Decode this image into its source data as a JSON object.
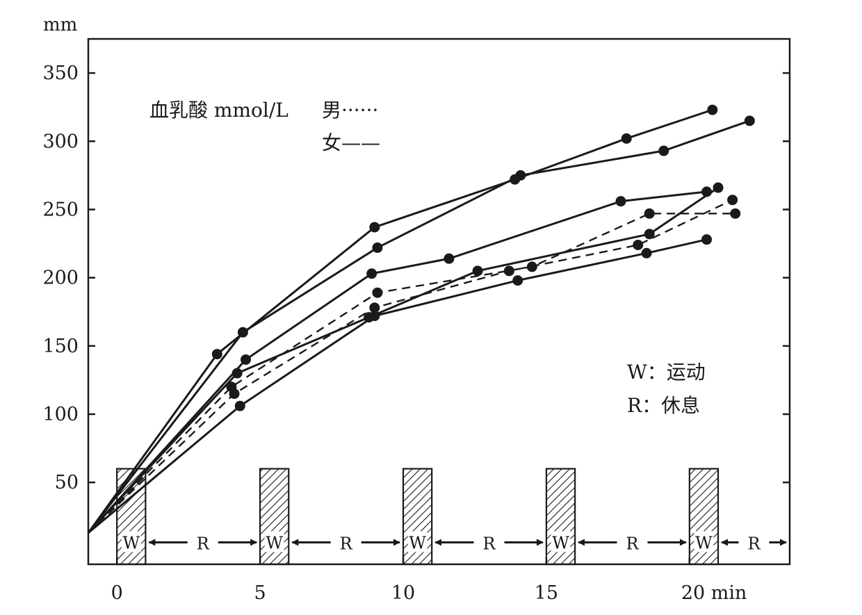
{
  "chart_data": {
    "type": "line",
    "ylabel": "mm",
    "xunit": "min",
    "xlim": [
      -1,
      23.5
    ],
    "ylim": [
      -10,
      375
    ],
    "xticks": [
      0,
      5,
      10,
      15,
      20
    ],
    "xtick_labels": [
      "0",
      "5",
      "10",
      "15",
      "20 min"
    ],
    "yticks": [
      50,
      100,
      150,
      200,
      250,
      300,
      350
    ],
    "yticks_right": [
      50,
      100,
      150,
      200,
      250,
      300,
      350
    ],
    "legend": {
      "title": "血乳酸 mmol/L",
      "male": "男······",
      "female": "女——"
    },
    "phase_legend": {
      "w": "W：运动",
      "r": "R：休息"
    },
    "exercise_bars": [
      {
        "start": 0,
        "end": 1,
        "height": 60,
        "label": "W"
      },
      {
        "start": 5,
        "end": 6,
        "height": 60,
        "label": "W"
      },
      {
        "start": 10,
        "end": 11,
        "height": 60,
        "label": "W"
      },
      {
        "start": 15,
        "end": 16,
        "height": 60,
        "label": "W"
      },
      {
        "start": 20,
        "end": 21,
        "height": 60,
        "label": "W"
      }
    ],
    "rest_intervals": [
      {
        "start": 1,
        "end": 5,
        "label": "R"
      },
      {
        "start": 6,
        "end": 10,
        "label": "R"
      },
      {
        "start": 11,
        "end": 15,
        "label": "R"
      },
      {
        "start": 16,
        "end": 20,
        "label": "R"
      },
      {
        "start": 21,
        "end": 24.2,
        "label": "R"
      }
    ],
    "series": [
      {
        "group": "女",
        "style": "solid",
        "points": [
          [
            -1,
            13
          ],
          [
            3.5,
            144
          ],
          [
            9,
            237
          ],
          [
            13.9,
            272
          ],
          [
            17.8,
            302
          ],
          [
            20.8,
            323
          ]
        ]
      },
      {
        "group": "女",
        "style": "solid",
        "points": [
          [
            -1,
            13
          ],
          [
            4.4,
            160
          ],
          [
            9.1,
            222
          ],
          [
            14.1,
            275
          ],
          [
            19.1,
            293
          ],
          [
            22.1,
            315
          ]
        ]
      },
      {
        "group": "女",
        "style": "solid",
        "points": [
          [
            -1,
            13
          ],
          [
            4.5,
            140
          ],
          [
            8.9,
            203
          ],
          [
            11.6,
            214
          ],
          [
            17.6,
            256
          ],
          [
            20.6,
            263
          ]
        ]
      },
      {
        "group": "女",
        "style": "solid",
        "points": [
          [
            -1,
            13
          ],
          [
            4.2,
            130
          ],
          [
            8.8,
            171
          ],
          [
            12.6,
            205
          ],
          [
            18.6,
            232
          ],
          [
            21.0,
            266
          ]
        ]
      },
      {
        "group": "女",
        "style": "solid",
        "points": [
          [
            -1,
            13
          ],
          [
            4.3,
            106
          ],
          [
            9.0,
            172
          ],
          [
            14.0,
            198
          ],
          [
            18.5,
            218
          ],
          [
            20.6,
            228
          ]
        ]
      },
      {
        "group": "男",
        "style": "dashed",
        "points": [
          [
            -1,
            13
          ],
          [
            4.0,
            120
          ],
          [
            9.1,
            189
          ],
          [
            14.5,
            208
          ],
          [
            18.6,
            247
          ],
          [
            21.6,
            247
          ]
        ]
      },
      {
        "group": "男",
        "style": "dashed",
        "points": [
          [
            -1,
            13
          ],
          [
            4.1,
            115
          ],
          [
            9.0,
            178
          ],
          [
            13.7,
            205
          ],
          [
            18.2,
            224
          ],
          [
            21.5,
            257
          ]
        ]
      }
    ]
  }
}
